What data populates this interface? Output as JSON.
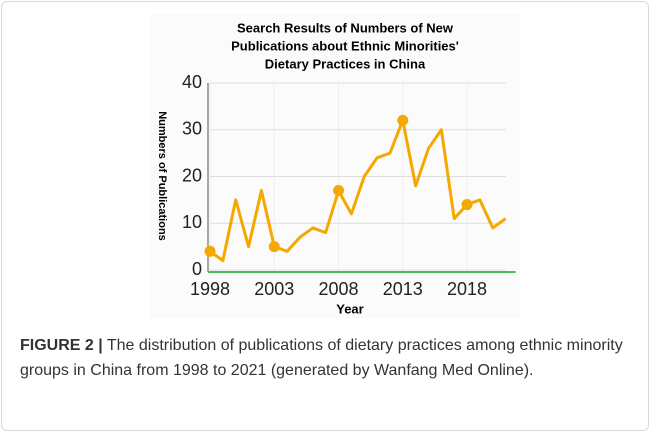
{
  "chart_data": {
    "type": "line",
    "title": [
      "Search Results of Numbers of New",
      "Publications about Ethnic Minorities'",
      "Dietary Practices in China"
    ],
    "xlabel": "Year",
    "ylabel": "Numbers of Publications",
    "x": [
      1998,
      1999,
      2000,
      2001,
      2002,
      2003,
      2004,
      2005,
      2006,
      2007,
      2008,
      2009,
      2010,
      2011,
      2012,
      2013,
      2014,
      2015,
      2016,
      2017,
      2018,
      2019,
      2020,
      2021
    ],
    "series": [
      {
        "color": "#f5a800",
        "values": [
          4,
          2,
          15,
          5,
          17,
          5,
          4,
          7,
          9,
          8,
          17,
          12,
          20,
          24,
          25,
          32,
          18,
          26,
          30,
          11,
          14,
          15,
          9,
          11
        ]
      }
    ],
    "xlim": [
      1998,
      2021
    ],
    "xticks": [
      1998,
      2003,
      2008,
      2013,
      2018
    ],
    "ylim": [
      0,
      40
    ],
    "yticks": [
      0,
      10,
      20,
      30,
      40
    ],
    "grid": true
  },
  "caption": {
    "label": "FIGURE 2 |",
    "text": "The distribution of publications of dietary practices among ethnic minority groups in China from 1998 to 2021 (generated by Wanfang Med Online)."
  }
}
